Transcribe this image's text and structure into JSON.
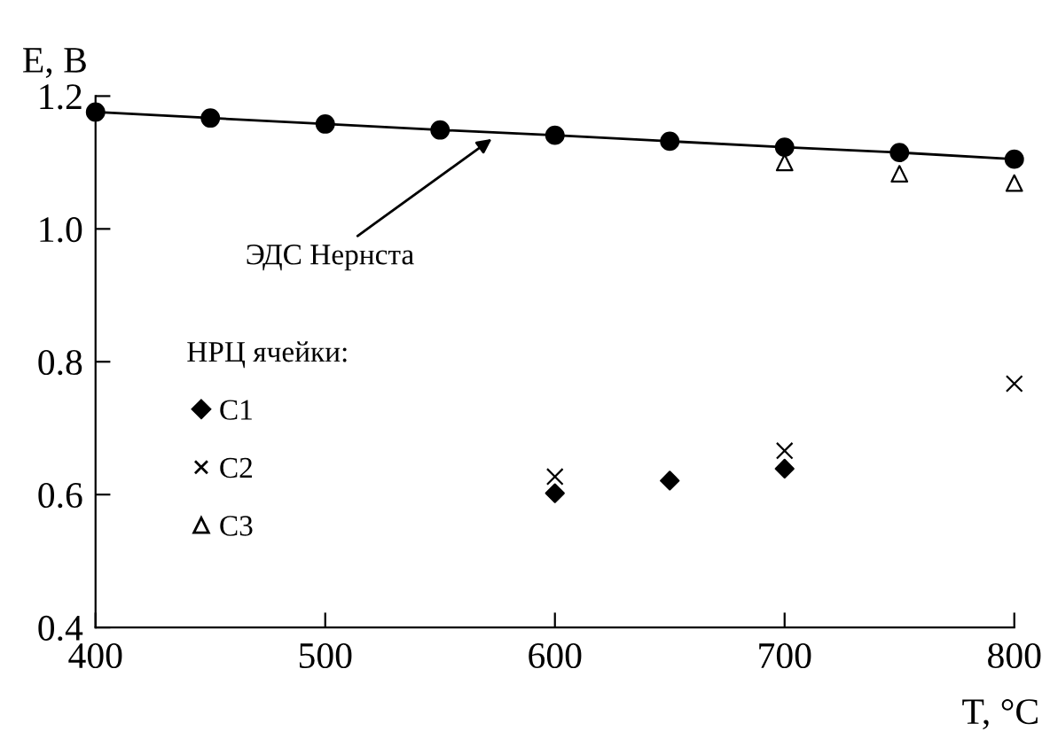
{
  "chart_data": {
    "type": "scatter",
    "xlabel": "T, °C",
    "ylabel": "E, В",
    "xlim": [
      400,
      800
    ],
    "ylim": [
      0.4,
      1.2
    ],
    "xticks": [
      400,
      500,
      600,
      700,
      800
    ],
    "yticks": [
      {
        "value": 0.4,
        "label": "0.4"
      },
      {
        "value": 0.6,
        "label": "0.6"
      },
      {
        "value": 0.8,
        "label": "0.8"
      },
      {
        "value": 1.0,
        "label": "1.0"
      },
      {
        "value": 1.2,
        "label": "1.2"
      }
    ],
    "grid": false,
    "legend": "left",
    "legend_title": "НРЦ ячейки:",
    "series": [
      {
        "name": "ЭДС Нернста",
        "type": "line",
        "marker": "circle",
        "color": "#000000",
        "x": [
          400,
          450,
          500,
          550,
          600,
          650,
          700,
          750,
          800
        ],
        "values": [
          1.176,
          1.167,
          1.158,
          1.149,
          1.141,
          1.132,
          1.123,
          1.115,
          1.105
        ]
      },
      {
        "name": "C1",
        "marker": "diamond",
        "color": "#000000",
        "x": [
          600,
          650,
          700
        ],
        "values": [
          0.602,
          0.621,
          0.639
        ]
      },
      {
        "name": "C2",
        "marker": "cross",
        "color": "#000000",
        "x": [
          600,
          700,
          800
        ],
        "values": [
          0.627,
          0.666,
          0.767
        ]
      },
      {
        "name": "C3",
        "marker": "triangle",
        "color": "#000000",
        "x": [
          700,
          750,
          800
        ],
        "values": [
          1.1,
          1.083,
          1.069
        ]
      }
    ]
  }
}
